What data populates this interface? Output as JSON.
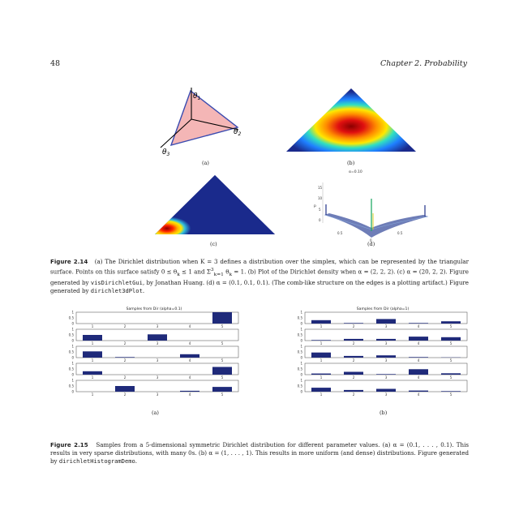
{
  "header": {
    "page_number": "48",
    "chapter": "Chapter 2.  Probability"
  },
  "fig214": {
    "labels": {
      "a": "(a)",
      "b": "(b)",
      "c": "(c)",
      "d": "(d)"
    },
    "axes": {
      "theta1": "θ",
      "theta2": "θ",
      "theta3": "θ",
      "sub1": "1",
      "sub2": "2",
      "sub3": "3"
    },
    "d_title": "α=0.10",
    "d_zlabel": "p",
    "d_ticks": [
      "15",
      "10",
      "5",
      "0"
    ],
    "d_xticks": [
      "0.5",
      "0.5",
      "0"
    ],
    "caption": {
      "label": "Figure 2.14",
      "t1": "(a) The Dirichlet distribution when K = 3 defines a distribution over the simplex, which can be represented by the triangular surface. Points on this surface satisfy 0 ≤ θ",
      "t1b": "k",
      "t1c": " ≤ 1 and Σ",
      "t1d": "k=1",
      "t1e": "3",
      "t1f": " θ",
      "t1g": "k",
      "t1h": " = 1.  (b) Plot of the Dirichlet density when α = (2, 2, 2).  (c) α = (20, 2, 2).  Figure generated by ",
      "code1": "visDirichletGui",
      "t2": ", by Jonathan Huang. (d) α = (0.1, 0.1, 0.1). (The comb-like structure on the edges is a plotting artifact.) Figure generated by ",
      "code2": "dirichlet3dPlot",
      "t3": "."
    }
  },
  "fig215": {
    "labels": {
      "a": "(a)",
      "b": "(b)"
    },
    "panels": [
      {
        "title": "Samples from Dir (alpha=0.1)",
        "categories": [
          "1",
          "2",
          "3",
          "4",
          "5"
        ],
        "yticks": [
          "1",
          "0.5",
          "0"
        ],
        "rows": [
          [
            0.0,
            0.0,
            0.0,
            0.0,
            1.0
          ],
          [
            0.5,
            0.0,
            0.55,
            0.0,
            0.0
          ],
          [
            0.55,
            0.05,
            0.0,
            0.3,
            0.0
          ],
          [
            0.3,
            0.0,
            0.0,
            0.0,
            0.68
          ],
          [
            0.0,
            0.5,
            0.0,
            0.08,
            0.42
          ]
        ]
      },
      {
        "title": "Samples from Dir (alpha=1)",
        "categories": [
          "1",
          "2",
          "3",
          "4",
          "5"
        ],
        "yticks": [
          "1",
          "0.5",
          "0"
        ],
        "rows": [
          [
            0.3,
            0.05,
            0.4,
            0.05,
            0.2
          ],
          [
            0.05,
            0.15,
            0.15,
            0.35,
            0.3
          ],
          [
            0.45,
            0.15,
            0.2,
            0.05,
            0.02
          ],
          [
            0.1,
            0.25,
            0.05,
            0.48,
            0.12
          ],
          [
            0.35,
            0.15,
            0.25,
            0.1,
            0.05
          ]
        ]
      }
    ],
    "caption": {
      "label": "Figure 2.15",
      "t1": "Samples from a 5-dimensional symmetric Dirichlet distribution for different parameter values. (a) α = (0.1, . . . , 0.1). This results in very sparse distributions, with many 0s. (b) α = (1, . . . , 1). This results in more uniform (and dense) distributions. Figure generated by ",
      "code": "dirichletHistogramDemo",
      "t2": "."
    }
  },
  "colors": {
    "bar": "#1f2a7a",
    "simplex_fill": "#f4b6b6",
    "simplex_edge": "#3a4bb0",
    "density_bg": "#1a2a8c"
  }
}
